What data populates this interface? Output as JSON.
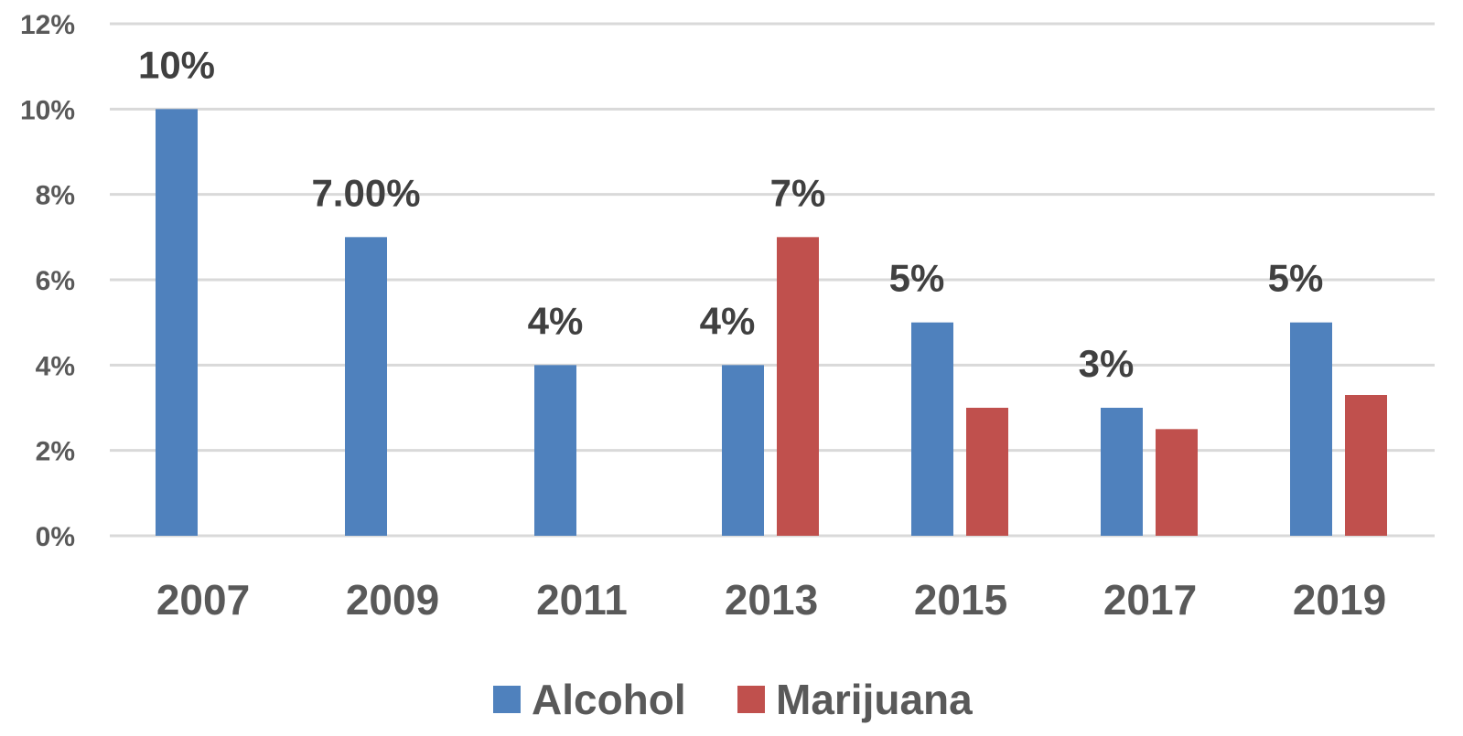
{
  "chart_data": {
    "type": "bar",
    "categories": [
      "2007",
      "2009",
      "2011",
      "2013",
      "2015",
      "2017",
      "2019"
    ],
    "series": [
      {
        "name": "Alcohol",
        "color": "#4F81BD",
        "values": [
          10,
          7,
          4,
          4,
          5,
          3,
          5
        ],
        "labels": [
          "10%",
          "7.00%",
          "4%",
          "4%",
          "5%",
          "3%",
          "5%"
        ]
      },
      {
        "name": "Marijuana",
        "color": "#C0504D",
        "values": [
          null,
          null,
          null,
          7,
          3,
          2.5,
          3.3
        ],
        "labels": [
          "",
          "",
          "",
          "7%",
          "",
          "",
          ""
        ]
      }
    ],
    "ylim": [
      0,
      12
    ],
    "yticks": [
      0,
      2,
      4,
      6,
      8,
      10,
      12
    ],
    "ytick_labels": [
      "0%",
      "2%",
      "4%",
      "6%",
      "8%",
      "10%",
      "12%"
    ],
    "grid": true,
    "legend_position": "bottom",
    "title": "",
    "xlabel": "",
    "ylabel": ""
  }
}
